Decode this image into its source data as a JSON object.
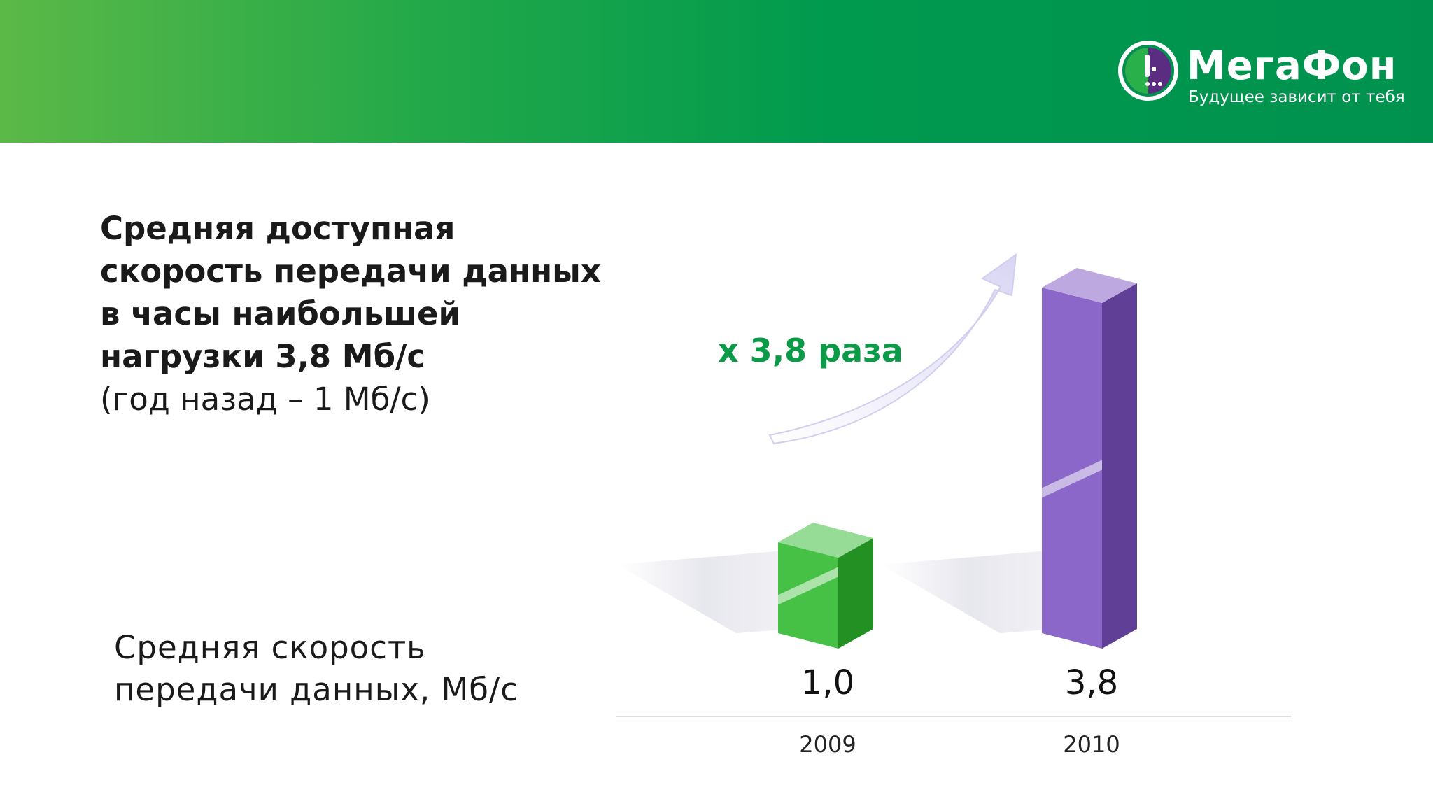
{
  "header": {
    "brand": "МегаФон",
    "slogan": "Будущее зависит от тебя",
    "colors": {
      "gradient_start": "#5bb947",
      "gradient_end": "#00914f"
    }
  },
  "headline": {
    "lines": [
      "Средняя доступная",
      "скорость передачи данных",
      "в часы наибольшей",
      "нагрузки 3,8 Мб/с"
    ],
    "note": "(год назад – 1 Мб/с)"
  },
  "chart_label": {
    "lines": [
      "Средняя скорость",
      "передачи данных, Мб/с"
    ]
  },
  "growth_label": "х 3,8 раза",
  "chart_data": {
    "type": "bar",
    "categories": [
      "2009",
      "2010"
    ],
    "values": [
      1.0,
      3.8
    ],
    "value_labels": [
      "1,0",
      "3,8"
    ],
    "bar_colors": [
      "#2db82d",
      "#7a52c0"
    ],
    "annotation": "х 3,8 раза",
    "title": "",
    "xlabel": "",
    "ylabel": "Средняя скорость передачи данных, Мб/с",
    "ylim": [
      0,
      3.8
    ],
    "grid": false,
    "legend": "none"
  }
}
